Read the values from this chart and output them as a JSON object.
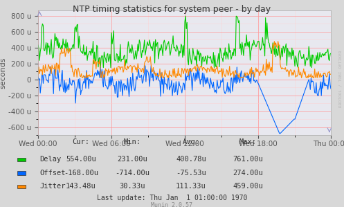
{
  "title": "NTP timing statistics for system peer - by day",
  "ylabel": "seconds",
  "background_color": "#d8d8d8",
  "plot_background_color": "#e8e8ef",
  "grid_major_color": "#ff9999",
  "grid_minor_color": "#ffcccc",
  "ylim": [
    -700,
    870
  ],
  "yticks": [
    -600,
    -400,
    -200,
    0,
    200,
    400,
    600,
    800
  ],
  "ytick_labels": [
    "-600 u",
    "-400 u",
    "-200 u",
    "0",
    "200 u",
    "400 u",
    "600 u",
    "800 u"
  ],
  "xtick_labels": [
    "Wed 00:00",
    "Wed 06:00",
    "Wed 12:00",
    "Wed 18:00",
    "Thu 00:00"
  ],
  "delay_color": "#00cc00",
  "offset_color": "#0066ff",
  "jitter_color": "#ff8800",
  "watermark": "RRDTOOL / TOBI OETIKER",
  "munin_version": "Munin 2.0.57",
  "legend": {
    "Delay": {
      "cur": "554.00u",
      "min": "231.00u",
      "avg": "400.78u",
      "max": "761.00u"
    },
    "Offset": {
      "cur": "-168.00u",
      "min": "-714.00u",
      "avg": "-75.53u",
      "max": "274.00u"
    },
    "Jitter": {
      "cur": "143.48u",
      "min": "30.33u",
      "avg": "111.33u",
      "max": "459.00u"
    }
  },
  "last_update": "Last update: Thu Jan  1 01:00:00 1970"
}
